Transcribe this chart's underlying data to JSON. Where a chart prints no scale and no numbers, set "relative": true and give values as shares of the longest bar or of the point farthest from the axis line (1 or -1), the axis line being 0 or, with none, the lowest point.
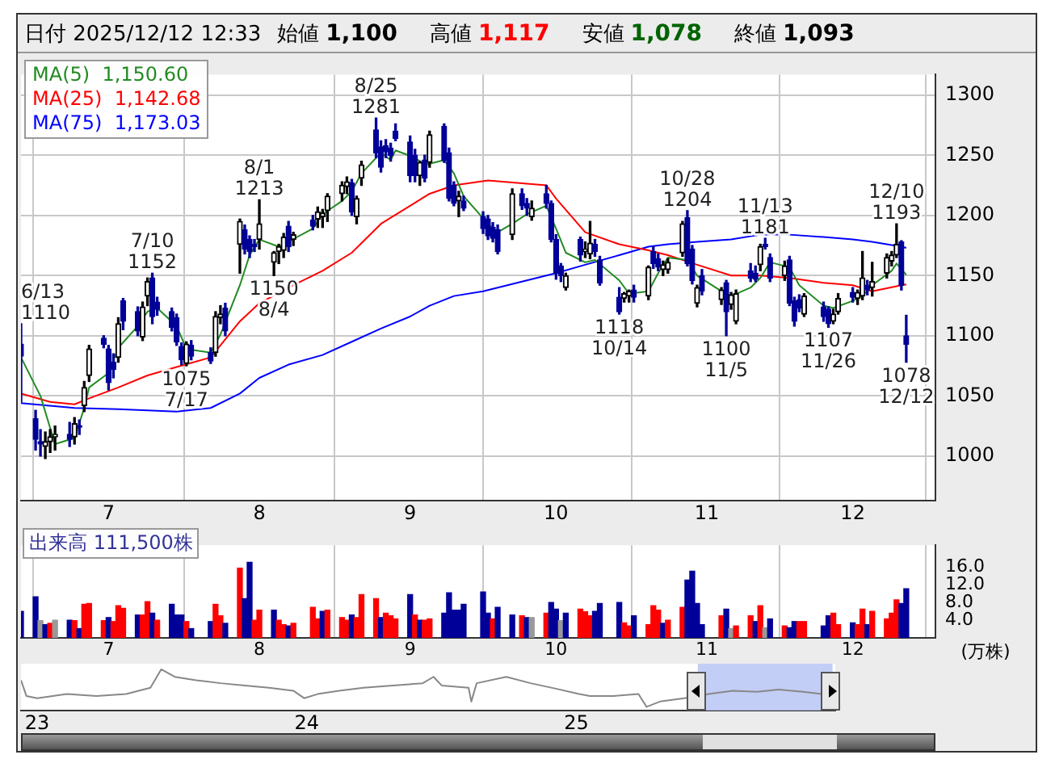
{
  "chart_data": [
    {
      "type": "candlestick",
      "title": "日付 2025/12/12 12:33",
      "x": [
        "2025-06-13",
        "2025-06-16",
        "2025-06-17",
        "2025-06-18",
        "2025-06-19",
        "2025-06-20",
        "2025-06-23",
        "2025-06-24",
        "2025-06-25",
        "2025-06-26",
        "2025-06-27",
        "2025-06-30",
        "2025-07-01",
        "2025-07-02",
        "2025-07-03",
        "2025-07-04",
        "2025-07-07",
        "2025-07-08",
        "2025-07-09",
        "2025-07-10",
        "2025-07-11",
        "2025-07-14",
        "2025-07-15",
        "2025-07-16",
        "2025-07-17",
        "2025-07-18",
        "2025-07-22",
        "2025-07-23",
        "2025-07-24",
        "2025-07-25",
        "2025-07-28",
        "2025-07-29",
        "2025-07-30",
        "2025-07-31",
        "2025-08-01",
        "2025-08-04",
        "2025-08-05",
        "2025-08-06",
        "2025-08-07",
        "2025-08-08",
        "2025-08-12",
        "2025-08-13",
        "2025-08-14",
        "2025-08-15",
        "2025-08-18",
        "2025-08-19",
        "2025-08-20",
        "2025-08-21",
        "2025-08-22",
        "2025-08-25",
        "2025-08-26",
        "2025-08-27",
        "2025-08-28",
        "2025-08-29",
        "2025-09-01",
        "2025-09-02",
        "2025-09-03",
        "2025-09-04",
        "2025-09-05",
        "2025-09-08",
        "2025-09-09",
        "2025-09-10",
        "2025-09-11",
        "2025-09-12",
        "2025-09-16",
        "2025-09-17",
        "2025-09-18",
        "2025-09-19",
        "2025-09-22",
        "2025-09-24",
        "2025-09-25",
        "2025-09-26",
        "2025-09-29",
        "2025-09-30",
        "2025-10-01",
        "2025-10-02",
        "2025-10-03",
        "2025-10-06",
        "2025-10-07",
        "2025-10-08",
        "2025-10-09",
        "2025-10-10",
        "2025-10-14",
        "2025-10-15",
        "2025-10-16",
        "2025-10-17",
        "2025-10-20",
        "2025-10-21",
        "2025-10-22",
        "2025-10-23",
        "2025-10-24",
        "2025-10-27",
        "2025-10-28",
        "2025-10-29",
        "2025-10-30",
        "2025-10-31",
        "2025-11-04",
        "2025-11-05",
        "2025-11-06",
        "2025-11-07",
        "2025-11-10",
        "2025-11-11",
        "2025-11-12",
        "2025-11-13",
        "2025-11-14",
        "2025-11-17",
        "2025-11-18",
        "2025-11-19",
        "2025-11-20",
        "2025-11-21",
        "2025-11-25",
        "2025-11-26",
        "2025-11-27",
        "2025-11-28",
        "2025-12-01",
        "2025-12-02",
        "2025-12-03",
        "2025-12-04",
        "2025-12-05",
        "2025-12-08",
        "2025-12-09",
        "2025-12-10",
        "2025-12-11",
        "2025-12-12"
      ],
      "ohlc": [
        [
          1093,
          1110,
          1045,
          1083
        ],
        [
          1031,
          1038,
          1005,
          1014
        ],
        [
          1012,
          1022,
          1000,
          1010
        ],
        [
          1008,
          1020,
          998,
          1012
        ],
        [
          1012,
          1022,
          1003,
          1016
        ],
        [
          1016,
          1025,
          1005,
          1018
        ],
        [
          1018,
          1028,
          1008,
          1014
        ],
        [
          1016,
          1032,
          1010,
          1027
        ],
        [
          1025,
          1030,
          1018,
          1024
        ],
        [
          1042,
          1062,
          1037,
          1057
        ],
        [
          1067,
          1092,
          1062,
          1089
        ],
        [
          1098,
          1100,
          1090,
          1093
        ],
        [
          1089,
          1092,
          1055,
          1061
        ],
        [
          1078,
          1085,
          1065,
          1072
        ],
        [
          1082,
          1115,
          1078,
          1110
        ],
        [
          1129,
          1131,
          1105,
          1112
        ],
        [
          1120,
          1124,
          1100,
          1104
        ],
        [
          1099,
          1128,
          1096,
          1124
        ],
        [
          1133,
          1148,
          1125,
          1145
        ],
        [
          1148,
          1152,
          1110,
          1116
        ],
        [
          1128,
          1132,
          1117,
          1122
        ],
        [
          1120,
          1123,
          1104,
          1107
        ],
        [
          1115,
          1118,
          1092,
          1095
        ],
        [
          1091,
          1094,
          1076,
          1080
        ],
        [
          1077,
          1095,
          1075,
          1093
        ],
        [
          1092,
          1096,
          1080,
          1083
        ],
        [
          1086,
          1090,
          1077,
          1079
        ],
        [
          1086,
          1120,
          1083,
          1116
        ],
        [
          1115,
          1125,
          1110,
          1118
        ],
        [
          1123,
          1127,
          1100,
          1104
        ],
        [
          1176,
          1197,
          1152,
          1195
        ],
        [
          1188,
          1192,
          1168,
          1172
        ],
        [
          1180,
          1183,
          1165,
          1170
        ],
        [
          1176,
          1180,
          1170,
          1174
        ],
        [
          1180,
          1213,
          1172,
          1193
        ],
        [
          1161,
          1170,
          1150,
          1169
        ],
        [
          1170,
          1176,
          1160,
          1174
        ],
        [
          1171,
          1185,
          1165,
          1182
        ],
        [
          1191,
          1195,
          1170,
          1174
        ],
        [
          1180,
          1186,
          1175,
          1184
        ],
        [
          1196,
          1200,
          1188,
          1191
        ],
        [
          1197,
          1207,
          1190,
          1203
        ],
        [
          1199,
          1205,
          1190,
          1202
        ],
        [
          1204,
          1218,
          1195,
          1216
        ],
        [
          1218,
          1228,
          1212,
          1225
        ],
        [
          1224,
          1232,
          1218,
          1228
        ],
        [
          1227,
          1230,
          1200,
          1203
        ],
        [
          1199,
          1216,
          1193,
          1214
        ],
        [
          1231,
          1245,
          1225,
          1242
        ],
        [
          1271,
          1281,
          1248,
          1252
        ],
        [
          1257,
          1262,
          1236,
          1240
        ],
        [
          1258,
          1263,
          1248,
          1253
        ],
        [
          1256,
          1260,
          1245,
          1250
        ],
        [
          1270,
          1276,
          1262,
          1264
        ],
        [
          1261,
          1266,
          1228,
          1233
        ],
        [
          1250,
          1255,
          1228,
          1233
        ],
        [
          1233,
          1245,
          1225,
          1244
        ],
        [
          1246,
          1250,
          1228,
          1231
        ],
        [
          1244,
          1270,
          1240,
          1267
        ],
        [
          1274,
          1276,
          1244,
          1246
        ],
        [
          1252,
          1256,
          1212,
          1214
        ],
        [
          1225,
          1228,
          1208,
          1210
        ],
        [
          1212,
          1220,
          1199,
          1216
        ],
        [
          1212,
          1216,
          1204,
          1206
        ],
        [
          1199,
          1203,
          1185,
          1189
        ],
        [
          1197,
          1200,
          1180,
          1183
        ],
        [
          1190,
          1194,
          1178,
          1181
        ],
        [
          1188,
          1192,
          1168,
          1170
        ],
        [
          1184,
          1222,
          1180,
          1218
        ],
        [
          1218,
          1222,
          1205,
          1208
        ],
        [
          1210,
          1214,
          1200,
          1206
        ],
        [
          1199,
          1212,
          1196,
          1206
        ],
        [
          1218,
          1225,
          1206,
          1210
        ],
        [
          1210,
          1212,
          1178,
          1180
        ],
        [
          1180,
          1184,
          1147,
          1152
        ],
        [
          1158,
          1160,
          1145,
          1150
        ],
        [
          1140,
          1152,
          1138,
          1150
        ],
        [
          1180,
          1182,
          1162,
          1167
        ],
        [
          1170,
          1178,
          1165,
          1172
        ],
        [
          1168,
          1195,
          1164,
          1177
        ],
        [
          1176,
          1180,
          1166,
          1170
        ],
        [
          1163,
          1166,
          1142,
          1144
        ],
        [
          1132,
          1140,
          1118,
          1120
        ],
        [
          1131,
          1136,
          1128,
          1135
        ],
        [
          1133,
          1138,
          1128,
          1137
        ],
        [
          1138,
          1142,
          1128,
          1132
        ],
        [
          1133,
          1158,
          1130,
          1157
        ],
        [
          1170,
          1174,
          1156,
          1160
        ],
        [
          1164,
          1168,
          1154,
          1157
        ],
        [
          1155,
          1162,
          1150,
          1159
        ],
        [
          1155,
          1164,
          1152,
          1161
        ],
        [
          1169,
          1195,
          1166,
          1193
        ],
        [
          1198,
          1204,
          1158,
          1160
        ],
        [
          1172,
          1175,
          1143,
          1146
        ],
        [
          1127,
          1142,
          1124,
          1140
        ],
        [
          1150,
          1155,
          1134,
          1137
        ],
        [
          1130,
          1140,
          1126,
          1138
        ],
        [
          1144,
          1146,
          1100,
          1120
        ],
        [
          1126,
          1136,
          1122,
          1134
        ],
        [
          1112,
          1138,
          1110,
          1135
        ],
        [
          1154,
          1160,
          1145,
          1148
        ],
        [
          1152,
          1158,
          1145,
          1147
        ],
        [
          1159,
          1176,
          1154,
          1174
        ],
        [
          1176,
          1181,
          1172,
          1174
        ],
        [
          1165,
          1168,
          1145,
          1148
        ],
        [
          1150,
          1162,
          1146,
          1158
        ],
        [
          1163,
          1166,
          1125,
          1127
        ],
        [
          1129,
          1132,
          1108,
          1112
        ],
        [
          1130,
          1134,
          1120,
          1123
        ],
        [
          1118,
          1135,
          1116,
          1133
        ],
        [
          1124,
          1128,
          1112,
          1116
        ],
        [
          1122,
          1124,
          1107,
          1110
        ],
        [
          1112,
          1122,
          1110,
          1118
        ],
        [
          1120,
          1135,
          1118,
          1131
        ],
        [
          1136,
          1140,
          1128,
          1132
        ],
        [
          1131,
          1138,
          1126,
          1136
        ],
        [
          1133,
          1170,
          1130,
          1148
        ],
        [
          1142,
          1146,
          1134,
          1138
        ],
        [
          1140,
          1161,
          1133,
          1145
        ],
        [
          1152,
          1168,
          1148,
          1165
        ],
        [
          1162,
          1170,
          1158,
          1167
        ],
        [
          1167,
          1193,
          1165,
          1176
        ],
        [
          1178,
          1179,
          1138,
          1142
        ],
        [
          1100,
          1117,
          1078,
          1093
        ]
      ],
      "xlim": [
        "2025-06-13",
        "2025-12-18"
      ],
      "xticks": [
        {
          "value": "2025-07-01",
          "label": "7"
        },
        {
          "value": "2025-08-01",
          "label": "8"
        },
        {
          "value": "2025-09-01",
          "label": "9"
        },
        {
          "value": "2025-10-01",
          "label": "10"
        },
        {
          "value": "2025-11-01",
          "label": "11"
        },
        {
          "value": "2025-12-01",
          "label": "12"
        }
      ],
      "ylim": [
        963,
        1317
      ],
      "yticks": [
        1000,
        1050,
        1100,
        1150,
        1200,
        1250,
        1300
      ],
      "grid": true,
      "legend": "top left",
      "series": [
        {
          "name": "MA(5)  1,150.60",
          "type": "line",
          "color": "#228b22",
          "x": [
            "2025-06-13",
            "2025-06-17",
            "2025-06-20",
            "2025-06-24",
            "2025-06-26",
            "2025-06-27",
            "2025-07-01",
            "2025-07-03",
            "2025-07-07",
            "2025-07-09",
            "2025-07-11",
            "2025-07-15",
            "2025-07-17",
            "2025-07-22",
            "2025-07-24",
            "2025-07-28",
            "2025-07-30",
            "2025-08-01",
            "2025-08-05",
            "2025-08-12",
            "2025-08-14",
            "2025-08-18",
            "2025-08-20",
            "2025-08-22",
            "2025-08-26",
            "2025-08-28",
            "2025-08-29",
            "2025-09-02",
            "2025-09-04",
            "2025-09-08",
            "2025-09-10",
            "2025-09-12",
            "2025-09-17",
            "2025-09-19",
            "2025-09-22",
            "2025-09-25",
            "2025-09-29",
            "2025-10-01",
            "2025-10-03",
            "2025-10-07",
            "2025-10-09",
            "2025-10-14",
            "2025-10-16",
            "2025-10-20",
            "2025-10-22",
            "2025-10-24",
            "2025-10-28",
            "2025-10-30",
            "2025-11-04",
            "2025-11-06",
            "2025-11-10",
            "2025-11-12",
            "2025-11-14",
            "2025-11-18",
            "2025-11-20",
            "2025-11-25",
            "2025-11-27",
            "2025-12-01",
            "2025-12-03",
            "2025-12-05",
            "2025-12-09",
            "2025-12-10",
            "2025-12-12"
          ],
          "values": [
            1082,
            1050,
            1010,
            1015,
            1040,
            1057,
            1069,
            1090,
            1108,
            1120,
            1123,
            1108,
            1089,
            1086,
            1101,
            1142,
            1167,
            1180,
            1174,
            1189,
            1201,
            1212,
            1220,
            1235,
            1252,
            1246,
            1254,
            1248,
            1242,
            1246,
            1235,
            1216,
            1193,
            1186,
            1193,
            1201,
            1208,
            1189,
            1169,
            1161,
            1163,
            1146,
            1135,
            1137,
            1152,
            1165,
            1163,
            1150,
            1137,
            1133,
            1140,
            1148,
            1161,
            1157,
            1142,
            1125,
            1123,
            1129,
            1133,
            1142,
            1154,
            1160,
            1150.6
          ]
        },
        {
          "name": "MA(25)  1,142.68",
          "type": "line",
          "color": "#ff0000",
          "x": [
            "2025-06-13",
            "2025-06-19",
            "2025-06-24",
            "2025-06-27",
            "2025-07-03",
            "2025-07-09",
            "2025-07-15",
            "2025-07-22",
            "2025-07-28",
            "2025-08-01",
            "2025-08-07",
            "2025-08-14",
            "2025-08-20",
            "2025-08-26",
            "2025-09-01",
            "2025-09-05",
            "2025-09-10",
            "2025-09-17",
            "2025-09-29",
            "2025-10-01",
            "2025-10-07",
            "2025-10-14",
            "2025-10-20",
            "2025-10-24",
            "2025-10-30",
            "2025-11-06",
            "2025-11-12",
            "2025-11-18",
            "2025-11-25",
            "2025-12-01",
            "2025-12-05",
            "2025-12-11",
            "2025-12-12"
          ],
          "values": [
            1052,
            1045,
            1043,
            1048,
            1057,
            1067,
            1074,
            1082,
            1112,
            1127,
            1140,
            1154,
            1169,
            1193,
            1208,
            1218,
            1225,
            1229,
            1225,
            1214,
            1186,
            1176,
            1171,
            1167,
            1159,
            1150,
            1150,
            1148,
            1144,
            1142,
            1137,
            1142,
            1142.68
          ]
        },
        {
          "name": "MA(75)  1,173.03",
          "type": "line",
          "color": "#0000ff",
          "x": [
            "2025-06-13",
            "2025-06-24",
            "2025-07-03",
            "2025-07-15",
            "2025-07-22",
            "2025-07-28",
            "2025-08-01",
            "2025-08-07",
            "2025-08-14",
            "2025-08-20",
            "2025-08-26",
            "2025-09-01",
            "2025-09-05",
            "2025-09-10",
            "2025-09-16",
            "2025-09-25",
            "2025-10-01",
            "2025-10-07",
            "2025-10-14",
            "2025-10-20",
            "2025-10-24",
            "2025-10-30",
            "2025-11-06",
            "2025-11-12",
            "2025-11-18",
            "2025-11-25",
            "2025-12-01",
            "2025-12-05",
            "2025-12-11",
            "2025-12-12"
          ],
          "values": [
            1044,
            1040,
            1039,
            1037,
            1040,
            1052,
            1065,
            1076,
            1084,
            1095,
            1106,
            1116,
            1125,
            1133,
            1137,
            1146,
            1152,
            1159,
            1167,
            1174,
            1176,
            1178,
            1180,
            1184,
            1184,
            1182,
            1180,
            1178,
            1174,
            1173.03
          ]
        }
      ],
      "annotations": [
        "始値",
        "1,100",
        "高値",
        "1,117",
        "安値",
        "1,078",
        "終値",
        "1,093",
        {
          "text": "6/13\n1110",
          "x": "2025-06-13",
          "y": 1110
        },
        {
          "text": "7/10\n1152",
          "x": "2025-07-10",
          "y": 1152
        },
        {
          "text": "1075\n7/17",
          "x": "2025-07-17",
          "y": 1075
        },
        {
          "text": "8/1\n1213",
          "x": "2025-08-01",
          "y": 1213
        },
        {
          "text": "1150\n8/4",
          "x": "2025-08-04",
          "y": 1150
        },
        {
          "text": "8/25\n1281",
          "x": "2025-08-25",
          "y": 1281
        },
        {
          "text": "1118\n10/14",
          "x": "2025-10-14",
          "y": 1118
        },
        {
          "text": "10/28\n1204",
          "x": "2025-10-28",
          "y": 1204
        },
        {
          "text": "1100\n11/5",
          "x": "2025-11-05",
          "y": 1100
        },
        {
          "text": "11/13\n1181",
          "x": "2025-11-13",
          "y": 1181
        },
        {
          "text": "1107\n11/26",
          "x": "2025-11-26",
          "y": 1107
        },
        {
          "text": "12/10\n1193",
          "x": "2025-12-10",
          "y": 1193
        },
        {
          "text": "1078\n12/12",
          "x": "2025-12-12",
          "y": 1078
        }
      ]
    },
    {
      "type": "bar",
      "title": "出来高 111,500株",
      "ylabel": "(万株)",
      "x": [
        "2025-06-13",
        "2025-06-16",
        "2025-06-17",
        "2025-06-18",
        "2025-06-19",
        "2025-06-20",
        "2025-06-23",
        "2025-06-24",
        "2025-06-25",
        "2025-06-26",
        "2025-06-27",
        "2025-06-30",
        "2025-07-01",
        "2025-07-02",
        "2025-07-03",
        "2025-07-04",
        "2025-07-07",
        "2025-07-08",
        "2025-07-09",
        "2025-07-10",
        "2025-07-11",
        "2025-07-14",
        "2025-07-15",
        "2025-07-16",
        "2025-07-17",
        "2025-07-18",
        "2025-07-22",
        "2025-07-23",
        "2025-07-24",
        "2025-07-25",
        "2025-07-28",
        "2025-07-29",
        "2025-07-30",
        "2025-07-31",
        "2025-08-01",
        "2025-08-04",
        "2025-08-05",
        "2025-08-06",
        "2025-08-07",
        "2025-08-08",
        "2025-08-12",
        "2025-08-13",
        "2025-08-14",
        "2025-08-15",
        "2025-08-18",
        "2025-08-19",
        "2025-08-20",
        "2025-08-21",
        "2025-08-22",
        "2025-08-25",
        "2025-08-26",
        "2025-08-27",
        "2025-08-28",
        "2025-08-29",
        "2025-09-01",
        "2025-09-02",
        "2025-09-03",
        "2025-09-04",
        "2025-09-05",
        "2025-09-08",
        "2025-09-09",
        "2025-09-10",
        "2025-09-11",
        "2025-09-12",
        "2025-09-16",
        "2025-09-17",
        "2025-09-18",
        "2025-09-19",
        "2025-09-22",
        "2025-09-24",
        "2025-09-25",
        "2025-09-26",
        "2025-09-29",
        "2025-09-30",
        "2025-10-01",
        "2025-10-02",
        "2025-10-03",
        "2025-10-06",
        "2025-10-07",
        "2025-10-08",
        "2025-10-09",
        "2025-10-10",
        "2025-10-14",
        "2025-10-15",
        "2025-10-16",
        "2025-10-17",
        "2025-10-20",
        "2025-10-21",
        "2025-10-22",
        "2025-10-23",
        "2025-10-24",
        "2025-10-27",
        "2025-10-28",
        "2025-10-29",
        "2025-10-30",
        "2025-10-31",
        "2025-11-04",
        "2025-11-05",
        "2025-11-06",
        "2025-11-07",
        "2025-11-10",
        "2025-11-11",
        "2025-11-12",
        "2025-11-13",
        "2025-11-14",
        "2025-11-17",
        "2025-11-18",
        "2025-11-19",
        "2025-11-20",
        "2025-11-21",
        "2025-11-25",
        "2025-11-26",
        "2025-11-27",
        "2025-11-28",
        "2025-12-01",
        "2025-12-02",
        "2025-12-03",
        "2025-12-04",
        "2025-12-05",
        "2025-12-08",
        "2025-12-09",
        "2025-12-10",
        "2025-12-11",
        "2025-12-12"
      ],
      "values": [
        6.0,
        9.3,
        3.9,
        3.0,
        3.3,
        4.0,
        4.0,
        3.9,
        2.1,
        7.6,
        7.8,
        3.9,
        4.6,
        3.7,
        7.3,
        6.7,
        5.2,
        5.2,
        8.2,
        5.6,
        4.0,
        7.6,
        5.2,
        5.2,
        3.7,
        2.1,
        3.7,
        7.6,
        5.0,
        3.3,
        15.8,
        8.9,
        17.1,
        4.0,
        6.3,
        6.3,
        4.0,
        3.0,
        2.7,
        3.3,
        6.9,
        4.3,
        6.0,
        6.3,
        4.6,
        4.0,
        5.2,
        4.6,
        9.8,
        8.9,
        4.6,
        5.6,
        5.0,
        4.3,
        9.8,
        5.2,
        4.0,
        4.0,
        4.3,
        5.6,
        10.2,
        6.3,
        6.3,
        7.6,
        10.4,
        5.6,
        4.3,
        6.9,
        5.2,
        5.0,
        4.6,
        4.6,
        5.6,
        8.0,
        6.5,
        3.9,
        5.6,
        6.5,
        5.9,
        5.0,
        6.0,
        7.8,
        8.0,
        3.4,
        2.7,
        5.0,
        3.0,
        7.3,
        6.3,
        3.3,
        4.0,
        6.9,
        13.1,
        15.1,
        7.8,
        3.0,
        5.0,
        6.5,
        2.1,
        2.7,
        5.0,
        3.7,
        7.3,
        2.3,
        4.3,
        2.7,
        2.3,
        3.7,
        3.7,
        3.7,
        2.7,
        5.0,
        5.6,
        3.0,
        3.4,
        3.0,
        6.5,
        3.0,
        6.0,
        4.3,
        5.6,
        8.6,
        7.8,
        11.15
      ],
      "colors": [
        "#000099",
        "#000099",
        "#999999",
        "#000099",
        "#ff0000",
        "#999999",
        "#000099",
        "#ff0000",
        "#000099",
        "#ff0000",
        "#ff0000",
        "#ff0000",
        "#000099",
        "#ff0000",
        "#ff0000",
        "#ff0000",
        "#000099",
        "#ff0000",
        "#ff0000",
        "#000099",
        "#ff0000",
        "#000099",
        "#000099",
        "#000099",
        "#ff0000",
        "#000099",
        "#000099",
        "#ff0000",
        "#ff0000",
        "#000099",
        "#ff0000",
        "#000099",
        "#000099",
        "#ff0000",
        "#ff0000",
        "#000099",
        "#ff0000",
        "#ff0000",
        "#000099",
        "#ff0000",
        "#ff0000",
        "#ff0000",
        "#000099",
        "#ff0000",
        "#ff0000",
        "#ff0000",
        "#000099",
        "#ff0000",
        "#ff0000",
        "#ff0000",
        "#000099",
        "#ff0000",
        "#ff0000",
        "#ff0000",
        "#000099",
        "#ff0000",
        "#000099",
        "#ff0000",
        "#ff0000",
        "#000099",
        "#000099",
        "#000099",
        "#000099",
        "#000099",
        "#000099",
        "#000099",
        "#ff0000",
        "#000099",
        "#000099",
        "#ff0000",
        "#000099",
        "#999999",
        "#ff0000",
        "#000099",
        "#000099",
        "#999999",
        "#000099",
        "#ff0000",
        "#ff0000",
        "#ff0000",
        "#000099",
        "#000099",
        "#000099",
        "#ff0000",
        "#ff0000",
        "#000099",
        "#ff0000",
        "#ff0000",
        "#ff0000",
        "#000099",
        "#ff0000",
        "#ff0000",
        "#000099",
        "#000099",
        "#000099",
        "#000099",
        "#ff0000",
        "#000099",
        "#999999",
        "#ff0000",
        "#ff0000",
        "#000099",
        "#ff0000",
        "#999999",
        "#000099",
        "#ff0000",
        "#000099",
        "#000099",
        "#ff0000",
        "#ff0000",
        "#000099",
        "#000099",
        "#ff0000",
        "#ff0000",
        "#000099",
        "#ff0000",
        "#ff0000",
        "#000099",
        "#ff0000",
        "#ff0000",
        "#ff0000",
        "#ff0000",
        "#000099",
        "#000099"
      ],
      "xlim": [
        "2025-06-13",
        "2025-12-18"
      ],
      "xticks": [
        {
          "value": "2025-07-01",
          "label": "7"
        },
        {
          "value": "2025-08-01",
          "label": "8"
        },
        {
          "value": "2025-09-01",
          "label": "9"
        },
        {
          "value": "2025-10-01",
          "label": "10"
        },
        {
          "value": "2025-11-01",
          "label": "11"
        },
        {
          "value": "2025-12-01",
          "label": "12"
        }
      ],
      "ylim": [
        0,
        21
      ],
      "yticks": [
        {
          "value": 4,
          "label": "4.0"
        },
        {
          "value": 8,
          "label": "8.0"
        },
        {
          "value": 12,
          "label": "12.0"
        },
        {
          "value": 16,
          "label": "16.0"
        }
      ],
      "grid": "x"
    },
    {
      "type": "line",
      "relative": true,
      "color": "#888888",
      "x": [
        2022.94,
        2022.96,
        2023.0,
        2023.11,
        2023.22,
        2023.33,
        2023.42,
        2023.46,
        2023.51,
        2023.59,
        2023.68,
        2023.77,
        2023.86,
        2023.95,
        2023.99,
        2024.04,
        2024.12,
        2024.21,
        2024.32,
        2024.43,
        2024.47,
        2024.5,
        2024.6,
        2024.61,
        2024.63,
        2024.74,
        2024.83,
        2024.92,
        2025.01,
        2025.05,
        2025.14,
        2025.23,
        2025.26,
        2025.31,
        2025.4,
        2025.49,
        2025.58,
        2025.67,
        2025.75,
        2025.84,
        2025.91
      ],
      "values": [
        0.71,
        0.29,
        0.23,
        0.34,
        0.29,
        0.34,
        0.51,
        1,
        0.8,
        0.71,
        0.63,
        0.57,
        0.51,
        0.43,
        0.23,
        0.34,
        0.43,
        0.51,
        0.57,
        0.63,
        0.8,
        0.57,
        0.51,
        0.14,
        0.63,
        0.8,
        0.63,
        0.49,
        0.34,
        0.29,
        0.29,
        0.34,
        0,
        0.14,
        0.23,
        0.34,
        0.43,
        0.4,
        0.46,
        0.4,
        0.34
      ],
      "xlim": [
        2022.94,
        2025.96
      ],
      "xticks": [
        {
          "value": 2023,
          "label": "23"
        },
        {
          "value": 2024,
          "label": "24"
        },
        {
          "value": 2025,
          "label": "25"
        }
      ],
      "bands": [
        {
          "axis": "x",
          "from": 2025.45,
          "to": 2025.95,
          "color": "#b8c6f5"
        }
      ]
    }
  ]
}
